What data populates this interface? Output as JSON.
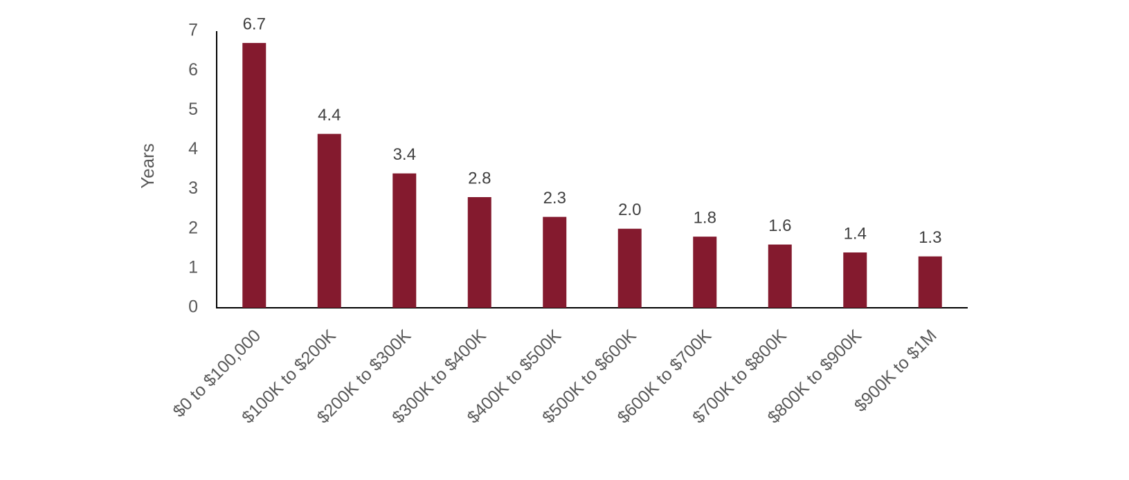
{
  "chart_data": {
    "type": "bar",
    "y_label": "Years",
    "categories": [
      "$0 to $100,000",
      "$100K to $200K",
      "$200K to $300K",
      "$300K to $400K",
      "$400K to $500K",
      "$500K to $600K",
      "$600K to $700K",
      "$700K to $800K",
      "$800K to $900K",
      "$900K to $1M"
    ],
    "values": [
      6.7,
      4.4,
      3.4,
      2.8,
      2.3,
      2.0,
      1.8,
      1.6,
      1.4,
      1.3
    ],
    "value_labels": [
      "6.7",
      "4.4",
      "3.4",
      "2.8",
      "2.3",
      "2.0",
      "1.8",
      "1.6",
      "1.4",
      "1.3"
    ],
    "color": "#841a2e",
    "ylim": [
      0,
      7
    ],
    "yticks": [
      0,
      1,
      2,
      3,
      4,
      5,
      6,
      7
    ],
    "grid": false
  }
}
